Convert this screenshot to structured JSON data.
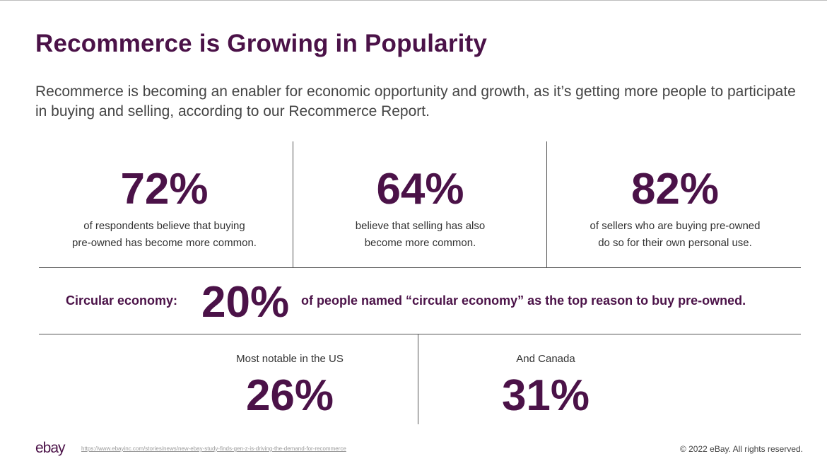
{
  "title": "Recommerce is Growing in Popularity",
  "subtitle": "Recommerce is becoming an enabler for economic opportunity and growth, as it’s getting more people to participate in buying and selling, according to our Recommerce Report.",
  "stats": [
    {
      "value": "72%",
      "line1": "of respondents believe that buying",
      "line2": "pre-owned has become more common."
    },
    {
      "value": "64%",
      "line1": "believe that selling has also",
      "line2": "become more common."
    },
    {
      "value": "82%",
      "line1": "of sellers who are buying pre-owned",
      "line2": "do so for their own personal use."
    }
  ],
  "circular": {
    "label": "Circular economy:",
    "value": "20%",
    "text": "of people named “circular economy” as the top reason to buy pre-owned."
  },
  "regions": [
    {
      "label": "Most notable in the US",
      "value": "26%"
    },
    {
      "label": "And Canada",
      "value": "31%"
    }
  ],
  "footer": {
    "logo": "ebay",
    "link": "https://www.ebayinc.com/stories/news/new-ebay-study-finds-gen-z-is-driving-the-demand-for-recommerce",
    "copyright": "© 2022 eBay. All rights reserved."
  }
}
